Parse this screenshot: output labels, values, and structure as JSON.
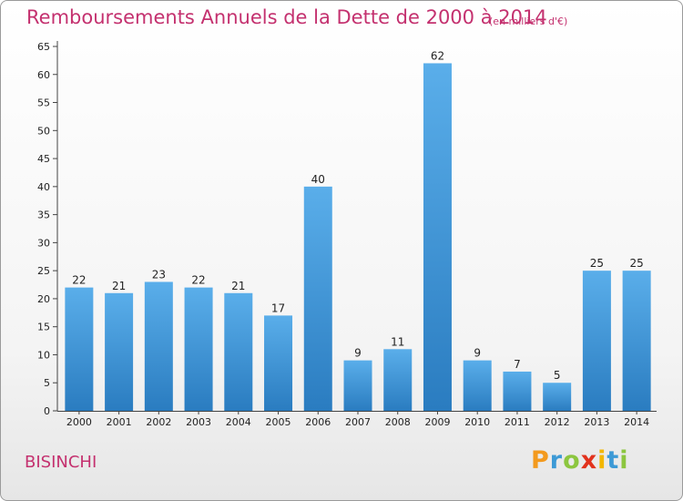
{
  "header": {
    "title": "Remboursements Annuels de la Dette de 2000 à 2014",
    "unit": "(en milliers d'€)"
  },
  "footer": {
    "commune": "BISINCHI",
    "logo": [
      "P",
      "r",
      "o",
      "x",
      "i",
      "t",
      "i"
    ]
  },
  "colors": {
    "title": "#c4316f",
    "bar_top": "#5aaeea",
    "bar_bottom": "#2a7cc0"
  },
  "chart_data": {
    "type": "bar",
    "title": "Remboursements Annuels de la Dette de 2000 à 2014",
    "xlabel": "",
    "ylabel": "",
    "categories": [
      "2000",
      "2001",
      "2002",
      "2003",
      "2004",
      "2005",
      "2006",
      "2007",
      "2008",
      "2009",
      "2010",
      "2011",
      "2012",
      "2013",
      "2014"
    ],
    "values": [
      22,
      21,
      23,
      22,
      21,
      17,
      40,
      9,
      11,
      62,
      9,
      7,
      5,
      25,
      25
    ],
    "ylim": [
      0,
      65
    ],
    "yticks": [
      0,
      5,
      10,
      15,
      20,
      25,
      30,
      35,
      40,
      45,
      50,
      55,
      60,
      65
    ],
    "grid": false,
    "legend": "none"
  }
}
